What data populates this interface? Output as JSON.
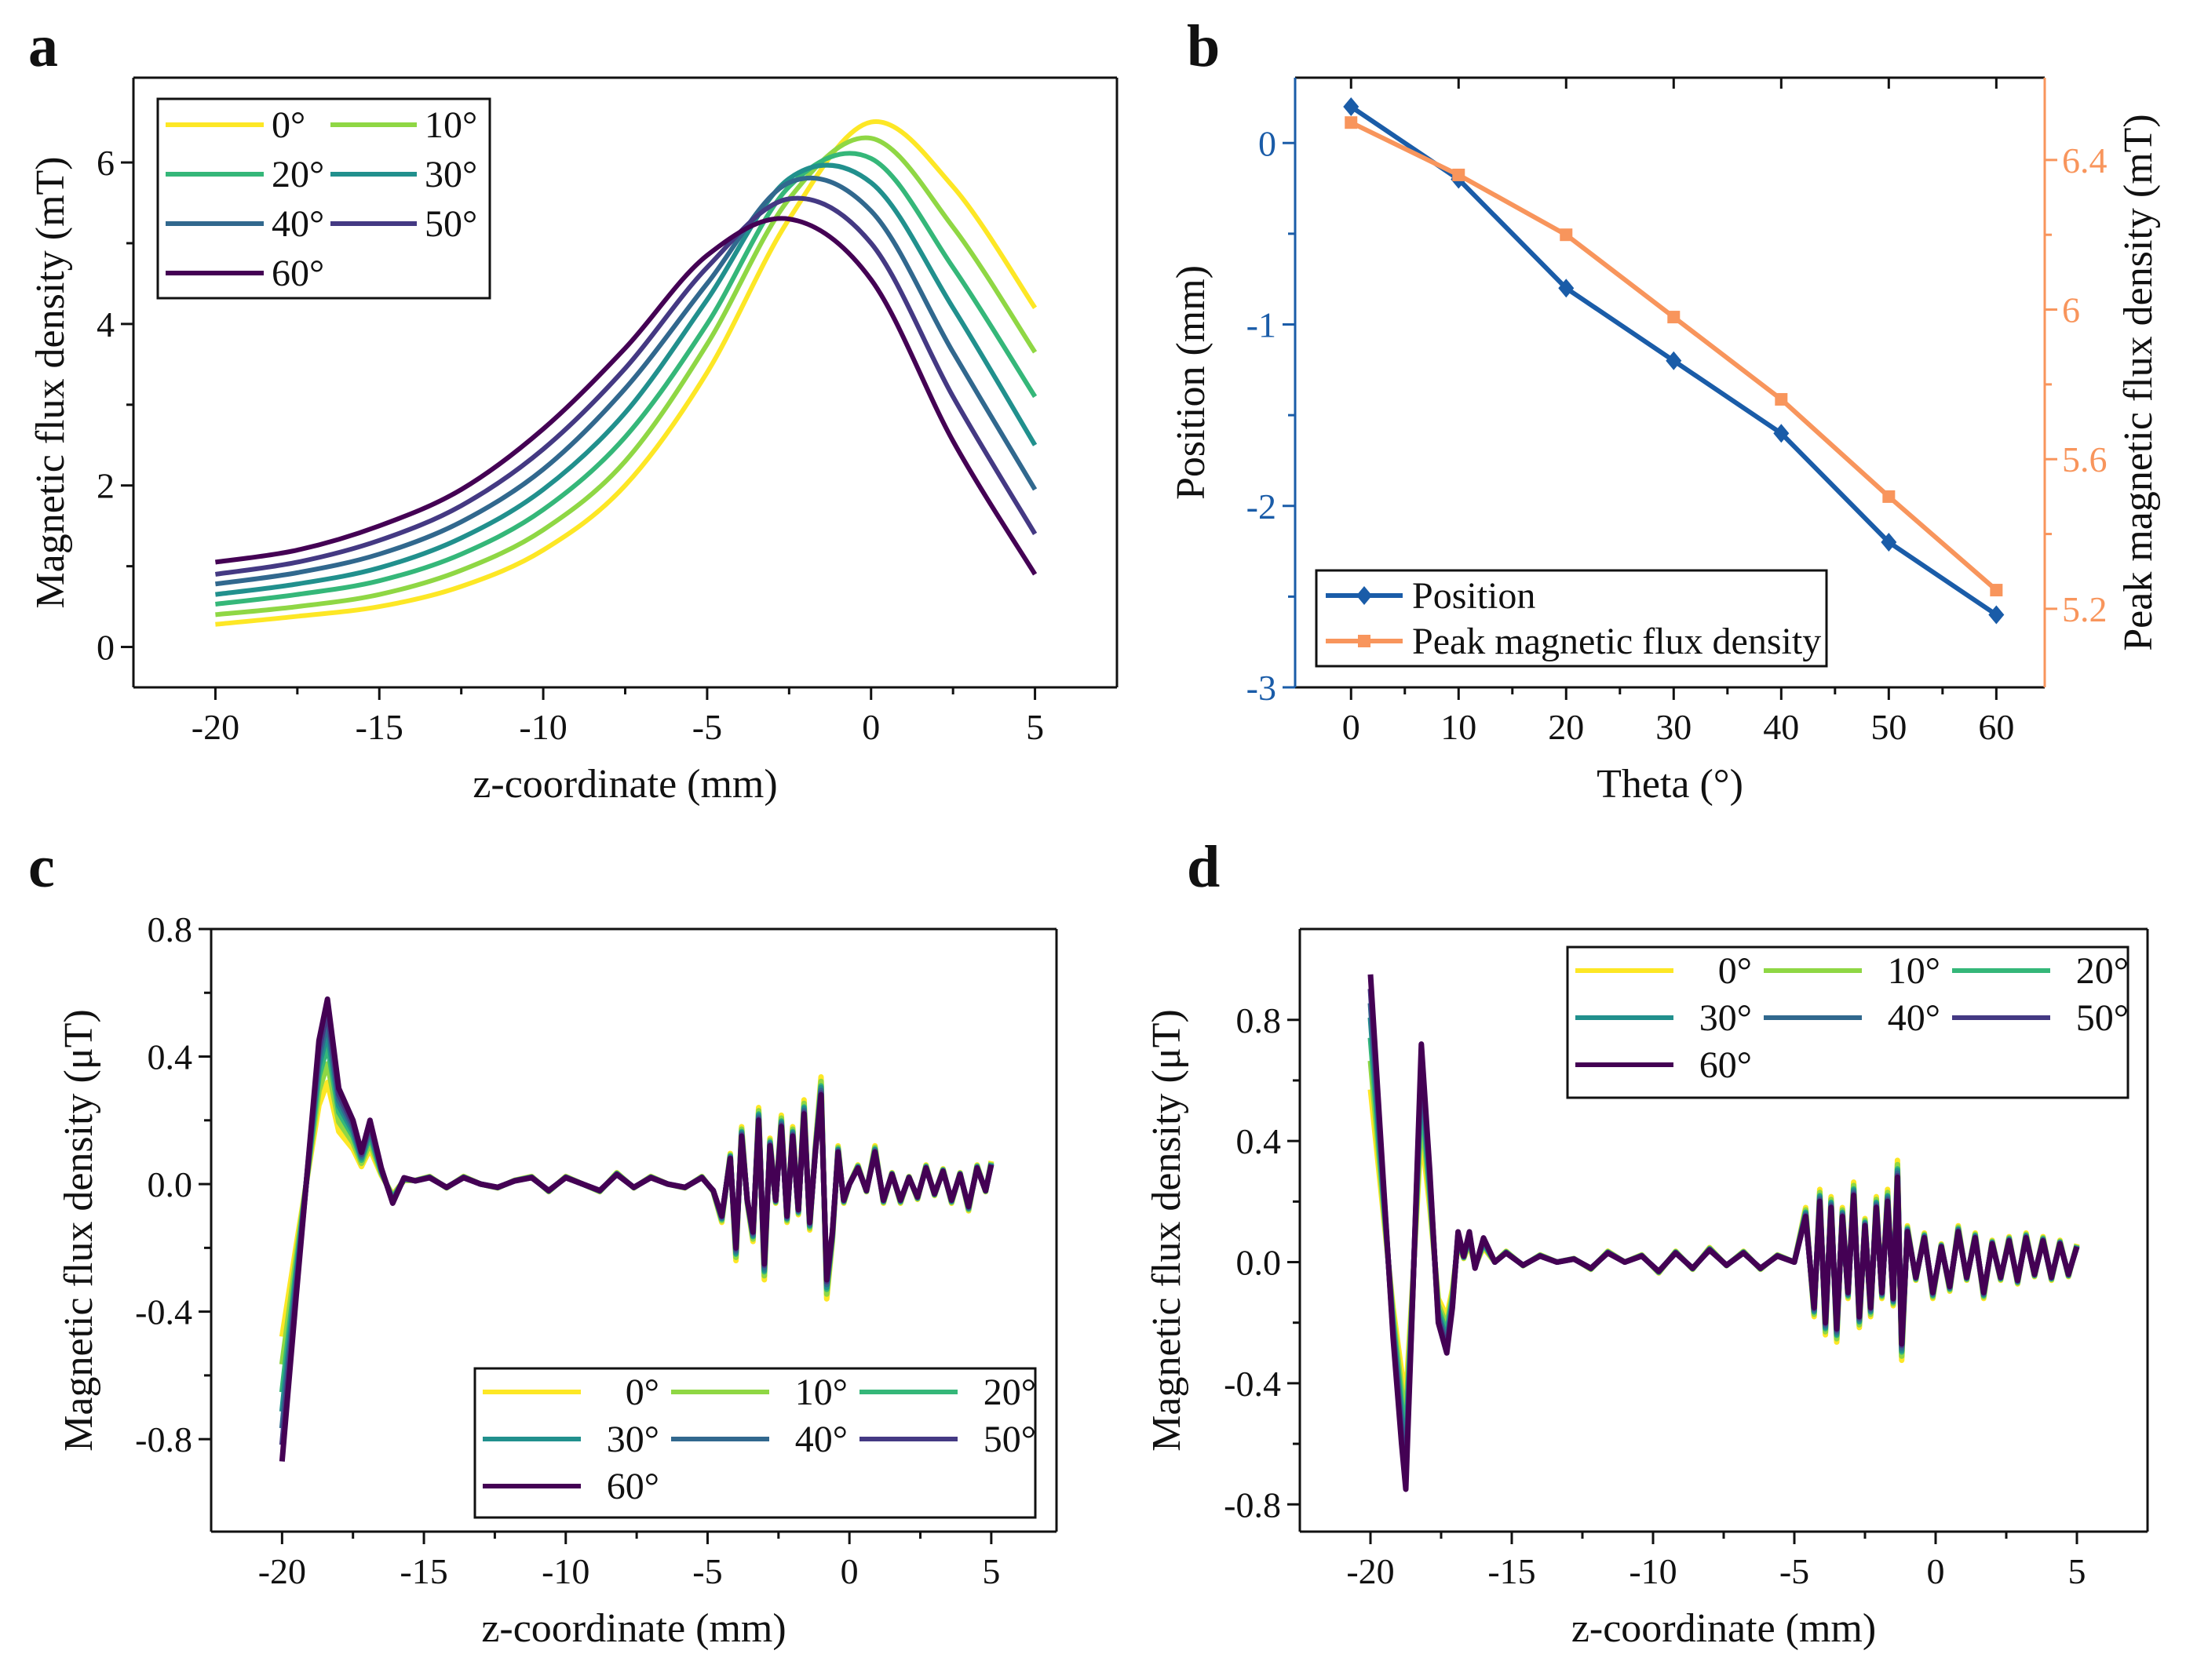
{
  "panels": {
    "a": "a",
    "b": "b",
    "c": "c",
    "d": "d"
  },
  "colors": {
    "viridis": [
      "#fde725",
      "#8fd744",
      "#35b779",
      "#21908d",
      "#31688e",
      "#443983",
      "#440154"
    ],
    "position": "#1a5ca8",
    "peak": "#f8955c"
  },
  "chart_data": [
    {
      "id": "a",
      "type": "line",
      "title": "",
      "xlabel": "z-coordinate (mm)",
      "ylabel": "Magnetic flux density (mT)",
      "xlim": [
        -22.5,
        7.5
      ],
      "ylim": [
        -0.5,
        7.05
      ],
      "xticks": [
        -20,
        -15,
        -10,
        -5,
        0,
        5
      ],
      "yticks": [
        0,
        2,
        4,
        6
      ],
      "legend": "top-left",
      "x": [
        -20,
        -17.5,
        -15,
        -12.5,
        -10,
        -7.5,
        -5,
        -2.5,
        0,
        2.5,
        5
      ],
      "series": [
        {
          "name": "0°",
          "values": [
            0.28,
            0.38,
            0.5,
            0.75,
            1.2,
            2.0,
            3.4,
            5.3,
            6.5,
            5.7,
            4.2
          ]
        },
        {
          "name": "10°",
          "values": [
            0.4,
            0.5,
            0.65,
            0.95,
            1.45,
            2.3,
            3.75,
            5.55,
            6.3,
            5.2,
            3.65
          ]
        },
        {
          "name": "20°",
          "values": [
            0.53,
            0.65,
            0.82,
            1.15,
            1.7,
            2.6,
            4.0,
            5.7,
            6.05,
            4.7,
            3.1
          ]
        },
        {
          "name": "30°",
          "values": [
            0.65,
            0.78,
            0.98,
            1.35,
            1.95,
            2.9,
            4.3,
            5.8,
            5.75,
            4.2,
            2.5
          ]
        },
        {
          "name": "40°",
          "values": [
            0.78,
            0.92,
            1.15,
            1.55,
            2.2,
            3.2,
            4.5,
            5.75,
            5.4,
            3.65,
            1.95
          ]
        },
        {
          "name": "50°",
          "values": [
            0.9,
            1.05,
            1.32,
            1.75,
            2.45,
            3.45,
            4.7,
            5.55,
            5.0,
            3.1,
            1.4
          ]
        },
        {
          "name": "60°",
          "values": [
            1.05,
            1.2,
            1.5,
            1.95,
            2.7,
            3.7,
            4.85,
            5.3,
            4.55,
            2.55,
            0.9
          ]
        }
      ]
    },
    {
      "id": "b",
      "type": "line",
      "title": "",
      "xlabel": "Theta (°)",
      "ylabel": "Position (mm)",
      "ylabel_right": "Peak magnetic flux density (mT)",
      "xlim": [
        -5.2,
        64.5
      ],
      "ylim": [
        -3,
        0.36
      ],
      "ylim_right": [
        4.99,
        6.62
      ],
      "xticks": [
        0,
        10,
        20,
        30,
        40,
        50,
        60
      ],
      "yticks": [
        0,
        -1,
        -2,
        -3
      ],
      "yticks_right": [
        6.4,
        6.0,
        5.6,
        5.2
      ],
      "legend": "bottom-left",
      "x": [
        0,
        10,
        20,
        30,
        40,
        50,
        60
      ],
      "series": [
        {
          "name": "Position",
          "axis": "left",
          "marker": "diamond",
          "values": [
            0.2,
            -0.2,
            -0.8,
            -1.2,
            -1.6,
            -2.2,
            -2.6
          ]
        },
        {
          "name": "Peak magnetic flux density",
          "axis": "right",
          "marker": "square",
          "values": [
            6.5,
            6.36,
            6.2,
            5.98,
            5.76,
            5.5,
            5.25
          ]
        }
      ]
    },
    {
      "id": "c",
      "type": "line",
      "title": "",
      "xlabel": "z-coordinate (mm)",
      "ylabel": "Magnetic flux density (μT)",
      "xlim": [
        -22.5,
        7.3
      ],
      "ylim": [
        -1.09,
        0.8
      ],
      "xticks": [
        -20,
        -15,
        -10,
        -5,
        0,
        5
      ],
      "yticks": [
        0.8,
        0.4,
        0.0,
        -0.4,
        -0.8
      ],
      "legend": "bottom-right",
      "x": [
        -20,
        -19.5,
        -19,
        -18.7,
        -18.4,
        -18,
        -17.5,
        -17.2,
        -16.9,
        -16.5,
        -16.1,
        -15.7,
        -15.3,
        -14.8,
        -14.2,
        -13.6,
        -13,
        -12.4,
        -11.8,
        -11.2,
        -10.6,
        -10,
        -9.4,
        -8.8,
        -8.2,
        -7.6,
        -7,
        -6.4,
        -5.8,
        -5.2,
        -4.8,
        -4.5,
        -4.2,
        -4,
        -3.8,
        -3.6,
        -3.4,
        -3.2,
        -3,
        -2.8,
        -2.6,
        -2.4,
        -2.2,
        -2,
        -1.8,
        -1.6,
        -1.4,
        -1.2,
        -1,
        -0.8,
        -0.6,
        -0.4,
        -0.2,
        0,
        0.3,
        0.6,
        0.9,
        1.2,
        1.5,
        1.8,
        2.1,
        2.4,
        2.7,
        3,
        3.3,
        3.6,
        3.9,
        4.2,
        4.5,
        4.8,
        5
      ],
      "base_series_60deg": [
        -0.87,
        -0.35,
        0.15,
        0.45,
        0.58,
        0.3,
        0.2,
        0.1,
        0.2,
        0.05,
        -0.06,
        0.02,
        0.01,
        0.02,
        -0.01,
        0.02,
        0.0,
        -0.01,
        0.01,
        0.02,
        -0.02,
        0.02,
        0.0,
        -0.02,
        0.03,
        -0.01,
        0.02,
        0.0,
        -0.01,
        0.02,
        -0.02,
        -0.1,
        0.08,
        -0.2,
        0.15,
        -0.05,
        -0.15,
        0.2,
        -0.25,
        0.12,
        -0.05,
        0.18,
        -0.1,
        0.15,
        -0.08,
        0.22,
        -0.12,
        0.1,
        0.28,
        -0.3,
        -0.15,
        0.1,
        -0.05,
        0.0,
        0.05,
        -0.02,
        0.1,
        -0.05,
        0.03,
        -0.05,
        0.02,
        -0.04,
        0.05,
        -0.03,
        0.04,
        -0.05,
        0.03,
        -0.07,
        0.05,
        -0.02,
        0.06
      ],
      "series": [
        {
          "name": "0°",
          "early_scale": 0.55,
          "late_scale": 1.2
        },
        {
          "name": "10°",
          "early_scale": 0.65,
          "late_scale": 1.15
        },
        {
          "name": "20°",
          "early_scale": 0.75,
          "late_scale": 1.1
        },
        {
          "name": "30°",
          "early_scale": 0.82,
          "late_scale": 1.08
        },
        {
          "name": "40°",
          "early_scale": 0.88,
          "late_scale": 1.05
        },
        {
          "name": "50°",
          "early_scale": 0.94,
          "late_scale": 1.02
        },
        {
          "name": "60°",
          "early_scale": 1.0,
          "late_scale": 1.0
        }
      ]
    },
    {
      "id": "d",
      "type": "line",
      "title": "",
      "xlabel": "z-coordinate (mm)",
      "ylabel": "Magnetic flux density (μT)",
      "xlim": [
        -22.5,
        7.5
      ],
      "ylim": [
        -0.89,
        1.1
      ],
      "xticks": [
        -20,
        -15,
        -10,
        -5,
        0,
        5
      ],
      "yticks": [
        0.8,
        0.4,
        0.0,
        -0.4,
        -0.8
      ],
      "legend": "top-right",
      "x": [
        -20,
        -19.6,
        -19.2,
        -18.9,
        -18.75,
        -18.5,
        -18.2,
        -17.9,
        -17.6,
        -17.3,
        -17.1,
        -16.9,
        -16.7,
        -16.5,
        -16.3,
        -16,
        -15.6,
        -15.2,
        -14.6,
        -14,
        -13.4,
        -12.8,
        -12.2,
        -11.6,
        -11,
        -10.4,
        -9.8,
        -9.2,
        -8.6,
        -8,
        -7.4,
        -6.8,
        -6.2,
        -5.6,
        -5,
        -4.6,
        -4.3,
        -4.1,
        -3.9,
        -3.7,
        -3.5,
        -3.3,
        -3.1,
        -2.9,
        -2.7,
        -2.5,
        -2.3,
        -2.1,
        -1.9,
        -1.7,
        -1.5,
        -1.35,
        -1.2,
        -1,
        -0.7,
        -0.4,
        -0.1,
        0.2,
        0.5,
        0.8,
        1.1,
        1.4,
        1.7,
        2,
        2.3,
        2.6,
        2.9,
        3.2,
        3.5,
        3.8,
        4.1,
        4.4,
        4.7,
        5
      ],
      "base_series_60deg": [
        0.95,
        0.35,
        -0.25,
        -0.6,
        -0.75,
        -0.1,
        0.72,
        0.3,
        -0.2,
        -0.3,
        -0.15,
        0.1,
        0.02,
        0.1,
        -0.02,
        0.08,
        0.0,
        0.03,
        -0.01,
        0.02,
        0.0,
        0.01,
        -0.02,
        0.03,
        0.0,
        0.02,
        -0.03,
        0.03,
        -0.02,
        0.04,
        -0.01,
        0.03,
        -0.02,
        0.02,
        0.0,
        0.15,
        -0.15,
        0.2,
        -0.2,
        0.18,
        -0.22,
        0.15,
        -0.1,
        0.22,
        -0.18,
        0.12,
        -0.15,
        0.18,
        -0.1,
        0.2,
        -0.12,
        0.28,
        -0.27,
        0.1,
        -0.05,
        0.08,
        -0.1,
        0.05,
        -0.08,
        0.1,
        -0.05,
        0.08,
        -0.1,
        0.06,
        -0.05,
        0.07,
        -0.06,
        0.08,
        -0.04,
        0.07,
        -0.05,
        0.06,
        -0.04,
        0.05
      ],
      "series": [
        {
          "name": "0°",
          "early_scale": 0.6,
          "late_scale": 1.2
        },
        {
          "name": "10°",
          "early_scale": 0.7,
          "late_scale": 1.15
        },
        {
          "name": "20°",
          "early_scale": 0.78,
          "late_scale": 1.1
        },
        {
          "name": "30°",
          "early_scale": 0.85,
          "late_scale": 1.08
        },
        {
          "name": "40°",
          "early_scale": 0.9,
          "late_scale": 1.05
        },
        {
          "name": "50°",
          "early_scale": 0.95,
          "late_scale": 1.02
        },
        {
          "name": "60°",
          "early_scale": 1.0,
          "late_scale": 1.0
        }
      ]
    }
  ]
}
